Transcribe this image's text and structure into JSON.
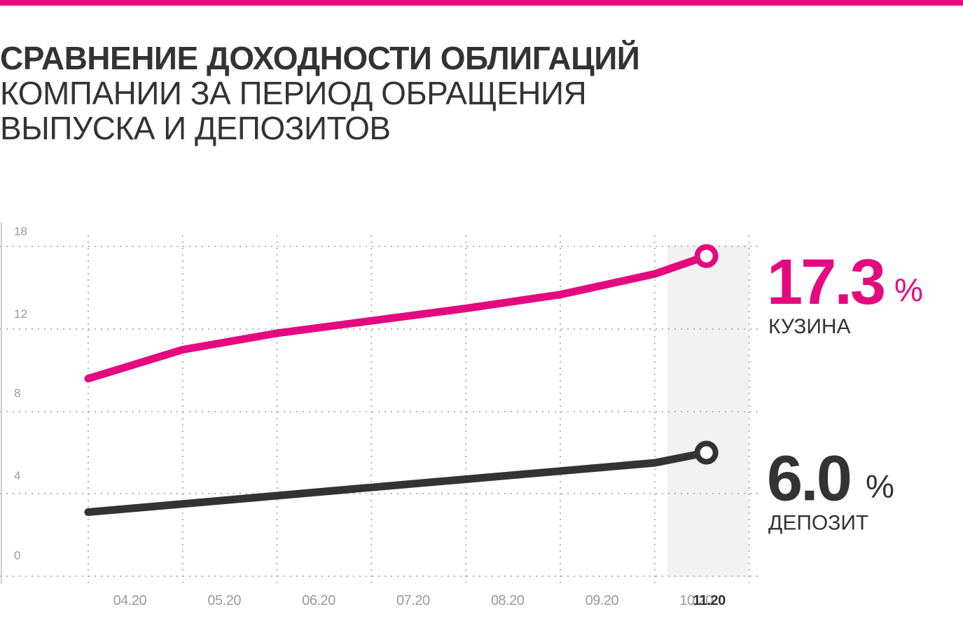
{
  "colors": {
    "accent": "#e5097f",
    "dark": "#333333",
    "highlight_bg": "#f2f2f2",
    "grid": "#b5b5b5",
    "tick": "#9a9a9a"
  },
  "title": {
    "line1": "СРАВНЕНИЕ ДОХОДНОСТИ ОБЛИГАЦИЙ",
    "line2": "КОМПАНИИ ЗА ПЕРИОД ОБРАЩЕНИЯ",
    "line3": "ВЫПУСКА И ДЕПОЗИТОВ"
  },
  "chart_data": {
    "type": "line",
    "title": "СРАВНЕНИЕ ДОХОДНОСТИ ОБЛИГАЦИЙ КОМПАНИИ ЗА ПЕРИОД ОБРАЩЕНИЯ ВЫПУСКА И ДЕПОЗИТОВ",
    "categories": [
      "04.20",
      "05.20",
      "06.20",
      "07.20",
      "08.20",
      "09.20",
      "10.20",
      "11.20"
    ],
    "highlight_category": "11.20",
    "y_ticks": [
      "18",
      "12",
      "8",
      "4",
      "0"
    ],
    "grid": true,
    "series": [
      {
        "name": "КУЗИНА",
        "color": "#e5097f",
        "values": [
          9.6,
          11.0,
          11.8,
          12.6,
          13.5,
          14.5,
          16.0,
          17.3
        ],
        "end_label": "17.3",
        "end_unit": "%"
      },
      {
        "name": "ДЕПОЗИТ",
        "color": "#333333",
        "values": [
          3.1,
          3.5,
          3.9,
          4.3,
          4.7,
          5.1,
          5.5,
          6.0
        ],
        "end_label": "6.0",
        "end_unit": "%"
      }
    ]
  }
}
